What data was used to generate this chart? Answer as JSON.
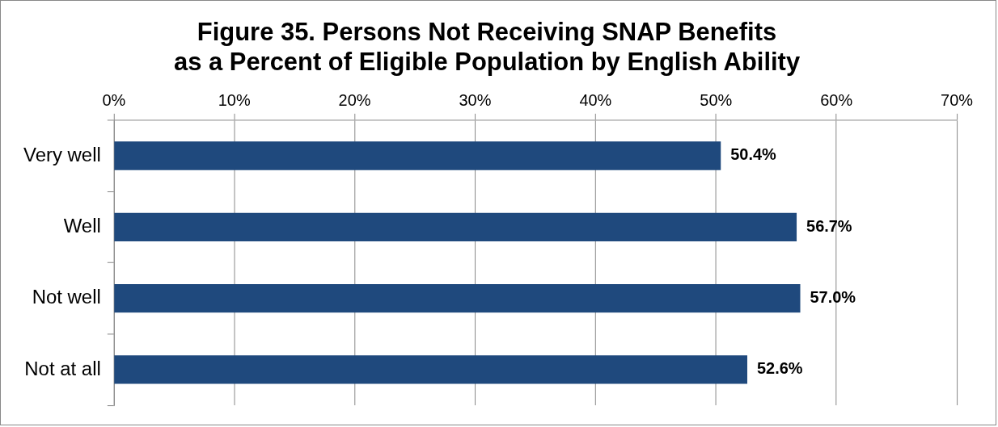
{
  "chart_data": {
    "type": "bar",
    "orientation": "horizontal",
    "title": "Figure 35. Persons Not Receiving SNAP Benefits\nas a Percent of Eligible Population by English Ability",
    "categories": [
      "Very well",
      "Well",
      "Not well",
      "Not at all"
    ],
    "values": [
      50.4,
      56.7,
      57.0,
      52.6
    ],
    "value_labels": [
      "50.4%",
      "56.7%",
      "57.0%",
      "52.6%"
    ],
    "color": "#1f497d",
    "xlim": [
      0,
      70
    ],
    "xticks": [
      {
        "value": 0,
        "label": "0%"
      },
      {
        "value": 10,
        "label": "10%"
      },
      {
        "value": 20,
        "label": "20%"
      },
      {
        "value": 30,
        "label": "30%"
      },
      {
        "value": 40,
        "label": "40%"
      },
      {
        "value": 50,
        "label": "50%"
      },
      {
        "value": 60,
        "label": "60%"
      },
      {
        "value": 70,
        "label": "70%"
      }
    ],
    "grid": "x"
  }
}
